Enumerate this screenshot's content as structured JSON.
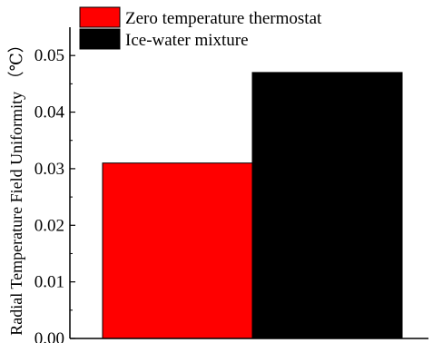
{
  "chart_data": {
    "type": "bar",
    "title": "",
    "xlabel": "",
    "ylabel": "Radial Temperature Field Uniformity （℃）",
    "ylim": [
      0,
      0.055
    ],
    "yticks": [
      "0.00",
      "0.01",
      "0.02",
      "0.03",
      "0.04",
      "0.05"
    ],
    "grid": false,
    "legend_position": "top-left",
    "series": [
      {
        "name": "Zero temperature thermostat",
        "value": 0.031,
        "color": "#ff0000"
      },
      {
        "name": "Ice-water mixture",
        "value": 0.047,
        "color": "#000000"
      }
    ]
  }
}
